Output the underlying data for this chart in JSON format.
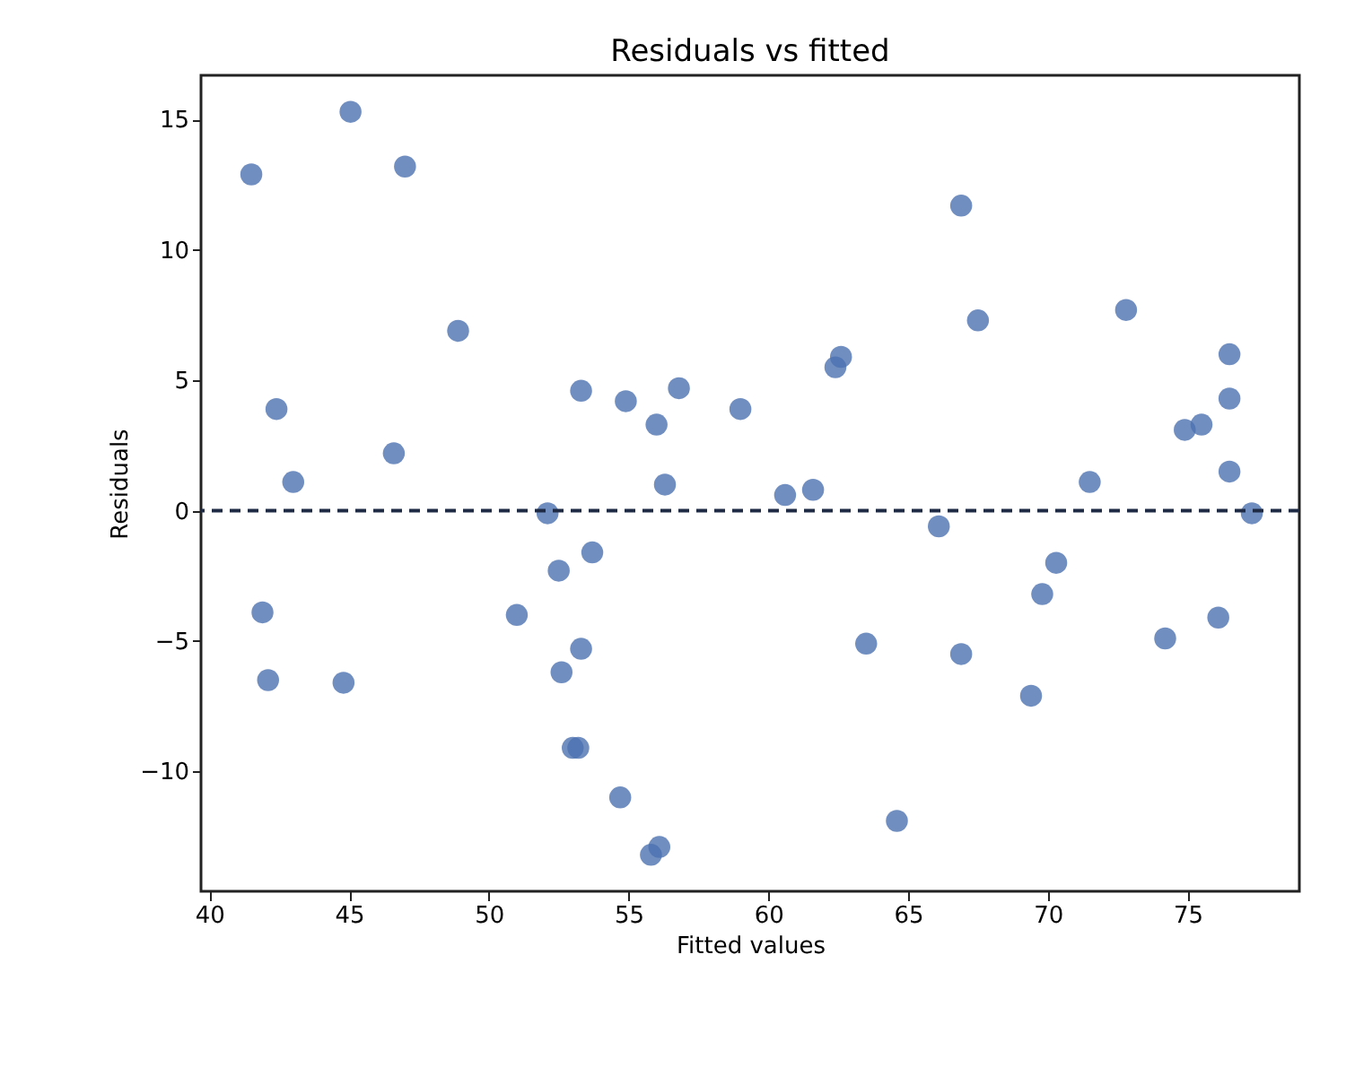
{
  "chart_data": {
    "type": "scatter",
    "title": "Residuals vs fitted",
    "xlabel": "Fitted values",
    "ylabel": "Residuals",
    "x": [
      41.5,
      45.05,
      47.0,
      48.9,
      42.4,
      43.0,
      46.6,
      41.9,
      42.1,
      44.8,
      52.1,
      52.5,
      53.7,
      51.0,
      52.6,
      53.3,
      53.0,
      53.2,
      54.7,
      55.8,
      56.1,
      53.3,
      54.9,
      56.0,
      56.8,
      56.3,
      59.0,
      60.6,
      61.6,
      62.4,
      62.6,
      66.9,
      67.5,
      66.1,
      63.5,
      66.9,
      64.6,
      71.5,
      70.3,
      69.8,
      69.4,
      72.8,
      74.2,
      74.9,
      75.5,
      76.5,
      76.5,
      76.5,
      76.1,
      77.3
    ],
    "series": [
      {
        "color": "#4c72b0",
        "values": [
          12.9,
          15.3,
          13.2,
          6.9,
          3.9,
          1.1,
          2.2,
          -3.9,
          -6.5,
          -6.6,
          -0.1,
          -2.3,
          -1.6,
          -4.0,
          -6.2,
          -5.3,
          -9.1,
          -9.1,
          -11.0,
          -13.2,
          -12.9,
          4.6,
          4.2,
          3.3,
          4.7,
          1.0,
          3.9,
          0.6,
          0.8,
          5.5,
          5.9,
          11.7,
          7.3,
          -0.6,
          -5.1,
          -5.5,
          -11.9,
          1.1,
          -2.0,
          -3.2,
          -7.1,
          7.7,
          -4.9,
          3.1,
          3.3,
          6.0,
          4.3,
          1.5,
          -4.1,
          -0.1
        ]
      }
    ],
    "xlim": [
      39.7,
      79.0
    ],
    "xticks": [
      40,
      45,
      50,
      55,
      60,
      65,
      70,
      75
    ],
    "ylim": [
      -14.6,
      16.7
    ],
    "yticks": [
      -10,
      -5,
      0,
      5,
      10,
      15
    ],
    "ref_lines": [
      {
        "axis": "y",
        "value": 0,
        "color": "#1f2a44",
        "line_style": "dashed"
      }
    ],
    "marker": "circle",
    "grid": false
  }
}
